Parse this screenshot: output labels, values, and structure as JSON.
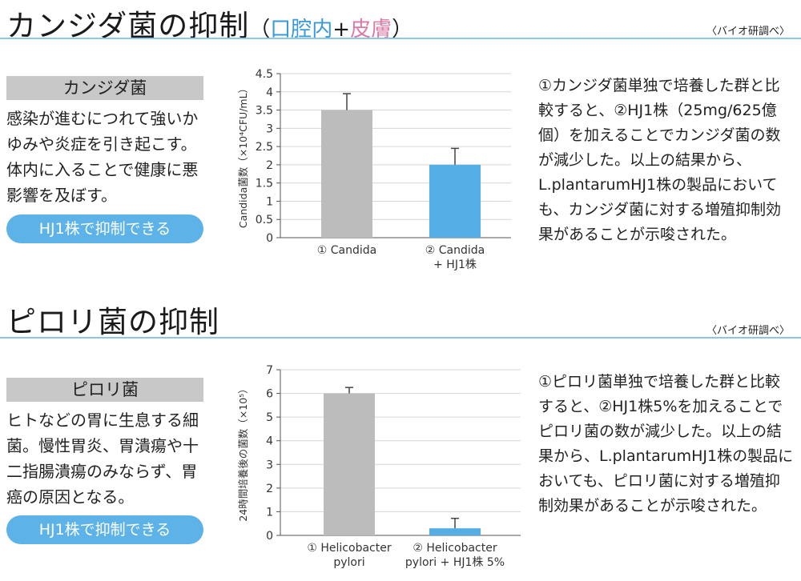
{
  "section1": {
    "title": "カンジダ菌の抑制",
    "subtitle_open": "（",
    "subtitle_blue": "口腔内",
    "subtitle_plus": "+",
    "subtitle_pink": "皮膚",
    "subtitle_close": "）",
    "source": "〈バイオ研調べ〉",
    "name": "カンジダ菌",
    "description": "感染が進むにつれて強いかゆみや炎症を引き起こす。体内に入ることで健康に悪影響を及ぼす。",
    "pill": "HJ1株で抑制できる",
    "result": "①カンジダ菌単独で培養した群と比較すると、②HJ1株（25mg/625億個）を加えることでカンジダ菌の数が減少した。以上の結果から、L.plantarumHJ1株の製品においても、カンジダ菌に対する増殖抑制効果があることが示唆された。"
  },
  "section2": {
    "title": "ピロリ菌の抑制",
    "source": "〈バイオ研調べ〉",
    "name": "ピロリ菌",
    "description": "ヒトなどの胃に生息する細菌。慢性胃炎、胃潰瘍や十二指腸潰瘍のみならず、胃癌の原因となる。",
    "pill": "HJ1株で抑制できる",
    "result": "①ピロリ菌単独で培養した群と比較すると、②HJ1株5%を加えることでピロリ菌の数が減少した。以上の結果から、L.plantarumHJ1株の製品においても、ピロリ菌に対する増殖抑制効果があることが示唆された。"
  },
  "chart_data": [
    {
      "type": "bar",
      "ylabel": "Candida菌数（×10⁴CFU/mL）",
      "ylim": [
        0,
        4.5
      ],
      "ticks": [
        0,
        0.5,
        1,
        1.5,
        2,
        2.5,
        3,
        3.5,
        4,
        4.5
      ],
      "tick_labels": [
        "0",
        "0.5",
        "1",
        "1.5",
        "2",
        "2.5",
        "3",
        "3.5",
        "4",
        "4.5"
      ],
      "categories": [
        [
          "① Candida"
        ],
        [
          "② Candida",
          "+ HJ1株"
        ]
      ],
      "values": [
        3.5,
        2.0
      ],
      "errors": [
        0.45,
        0.45
      ],
      "colors": [
        "#bcbcbc",
        "#56aee6"
      ],
      "grid": true
    },
    {
      "type": "bar",
      "ylabel": "24時間培養後の菌数（×10⁵）",
      "ylim": [
        0,
        7
      ],
      "ticks": [
        0,
        1,
        2,
        3,
        4,
        5,
        6,
        7
      ],
      "tick_labels": [
        "0",
        "1",
        "2",
        "3",
        "4",
        "5",
        "6",
        "7"
      ],
      "categories": [
        [
          "① Helicobacter",
          "pylori"
        ],
        [
          "② Helicobacter",
          "pylori + HJ1株 5%"
        ]
      ],
      "values": [
        6.0,
        0.3
      ],
      "errors": [
        0.25,
        0.42
      ],
      "colors": [
        "#bcbcbc",
        "#56aee6"
      ],
      "grid": true
    }
  ]
}
